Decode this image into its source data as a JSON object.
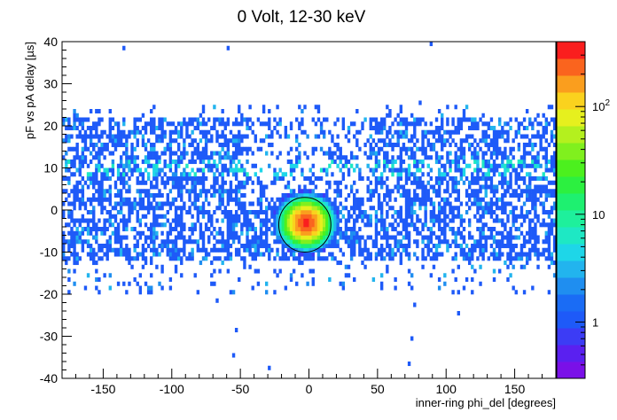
{
  "chart_data": {
    "type": "heatmap",
    "title": "0 Volt, 12-30 keV",
    "xlabel": "inner-ring phi_del [degrees]",
    "ylabel": "pF vs pA delay [µs]",
    "xlim": [
      -180,
      180
    ],
    "ylim": [
      -40,
      40
    ],
    "x_ticks": [
      -150,
      -100,
      -50,
      0,
      50,
      100,
      150
    ],
    "y_ticks": [
      -40,
      -30,
      -20,
      -10,
      0,
      10,
      20,
      30,
      40
    ],
    "grid": false,
    "z_scale": "log",
    "z_range": [
      0.3,
      400
    ],
    "colorbar": {
      "ticks": [
        {
          "value": 1,
          "label": "1"
        },
        {
          "value": 10,
          "label": "10"
        },
        {
          "value": 100,
          "label": "10",
          "sup": "2"
        }
      ],
      "colors": [
        "#7a10e8",
        "#5a20f0",
        "#3c3cf5",
        "#1e5af8",
        "#1a6cf5",
        "#1f8ef0",
        "#22b4ee",
        "#1ed6e8",
        "#1ee8c4",
        "#1ef09c",
        "#1ef070",
        "#2cf040",
        "#4cf01e",
        "#80f01e",
        "#b4f01e",
        "#e6f01e",
        "#fad21e",
        "#fa9e1e",
        "#fa641e",
        "#fa1e1e"
      ]
    },
    "bins": {
      "x_width": 2,
      "y_width": 1
    },
    "populations": [
      {
        "name": "main band",
        "y_range": [
          -20,
          25
        ],
        "dense_y_range": [
          -12,
          22
        ],
        "peak_y": 10,
        "peak_count": 5
      },
      {
        "name": "central peak",
        "x": -2,
        "y": -3,
        "peak_count": 300
      }
    ],
    "annotation": {
      "shape": "ellipse",
      "center_x": -3,
      "center_y": -3.5,
      "radius_x": 19,
      "radius_y": 6.5
    }
  }
}
